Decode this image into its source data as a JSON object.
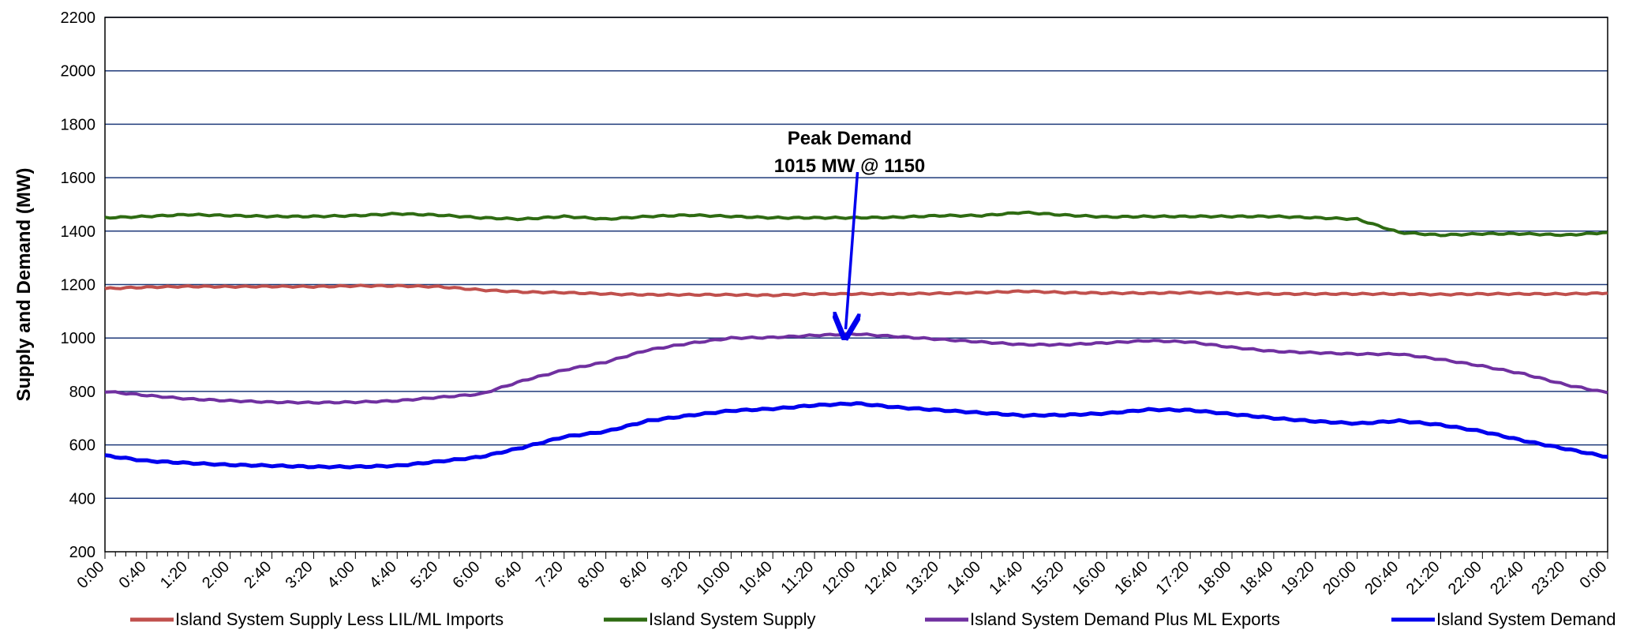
{
  "chart_data": {
    "type": "line",
    "title": "",
    "xlabel": "",
    "ylabel": "Supply and Demand (MW)",
    "ylim": [
      200,
      2200
    ],
    "yticks": [
      200,
      400,
      600,
      800,
      1000,
      1200,
      1400,
      1600,
      1800,
      2000,
      2200
    ],
    "x_tick_labels": [
      "0:00",
      "0:40",
      "1:20",
      "2:00",
      "2:40",
      "3:20",
      "4:00",
      "4:40",
      "5:20",
      "6:00",
      "6:40",
      "7:20",
      "8:00",
      "8:40",
      "9:20",
      "10:00",
      "10:40",
      "11:20",
      "12:00",
      "12:40",
      "13:20",
      "14:00",
      "14:40",
      "15:20",
      "16:00",
      "16:40",
      "17:20",
      "18:00",
      "18:40",
      "19:20",
      "20:00",
      "20:40",
      "21:20",
      "22:00",
      "22:40",
      "23:20",
      "0:00"
    ],
    "x_hours": [
      0,
      0.67,
      1.33,
      2,
      2.67,
      3.33,
      4,
      4.67,
      5.33,
      6,
      6.67,
      7.33,
      8,
      8.67,
      9.33,
      10,
      10.67,
      11.33,
      12,
      12.67,
      13.33,
      14,
      14.67,
      15.33,
      16,
      16.67,
      17.33,
      18,
      18.67,
      19.33,
      20,
      20.67,
      21.33,
      22,
      22.67,
      23.33,
      24
    ],
    "grid": true,
    "legend_position": "bottom",
    "series": [
      {
        "name": "Island System Supply Less LIL/ML Imports",
        "color": "#c0504d",
        "values": [
          1185,
          1190,
          1193,
          1192,
          1193,
          1192,
          1195,
          1195,
          1192,
          1180,
          1172,
          1170,
          1165,
          1162,
          1162,
          1162,
          1160,
          1165,
          1165,
          1165,
          1167,
          1170,
          1175,
          1170,
          1168,
          1168,
          1170,
          1168,
          1165,
          1165,
          1165,
          1165,
          1163,
          1165,
          1165,
          1165,
          1168
        ]
      },
      {
        "name": "Island System Supply",
        "color": "#2e6b12",
        "values": [
          1450,
          1455,
          1462,
          1458,
          1455,
          1455,
          1458,
          1465,
          1460,
          1450,
          1445,
          1455,
          1445,
          1455,
          1460,
          1455,
          1450,
          1450,
          1450,
          1452,
          1458,
          1458,
          1470,
          1460,
          1453,
          1455,
          1455,
          1455,
          1455,
          1450,
          1445,
          1395,
          1385,
          1390,
          1390,
          1385,
          1395
        ]
      },
      {
        "name": "Island System Demand Plus ML Exports",
        "color": "#7030a0",
        "values": [
          800,
          785,
          772,
          765,
          760,
          758,
          760,
          765,
          778,
          790,
          840,
          880,
          910,
          955,
          980,
          1000,
          1002,
          1010,
          1015,
          1005,
          995,
          985,
          975,
          975,
          982,
          990,
          985,
          965,
          950,
          945,
          940,
          940,
          920,
          895,
          865,
          825,
          795
        ]
      },
      {
        "name": "Island System Demand",
        "color": "#0000ee",
        "values": [
          560,
          540,
          532,
          525,
          522,
          518,
          518,
          522,
          538,
          555,
          590,
          630,
          650,
          690,
          710,
          728,
          735,
          748,
          755,
          740,
          730,
          720,
          710,
          712,
          718,
          732,
          730,
          715,
          700,
          688,
          680,
          690,
          675,
          650,
          615,
          585,
          555
        ]
      }
    ],
    "annotations": [
      {
        "line1": "Peak Demand",
        "line2": "1015 MW @ 1150",
        "x_hour": 11.83,
        "value": 1015
      }
    ]
  }
}
